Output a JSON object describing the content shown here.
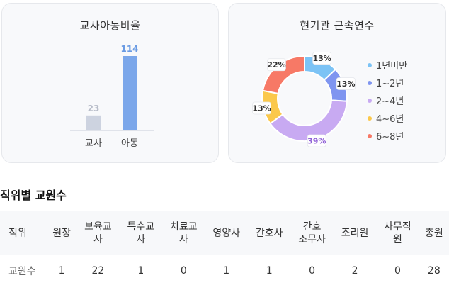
{
  "ratio_card": {
    "title": "교사아동비율"
  },
  "tenure_card": {
    "title": "현기관 근속연수"
  },
  "chart_data": [
    {
      "type": "bar",
      "title": "교사아동비율",
      "categories": [
        "교사",
        "아동"
      ],
      "values": [
        23,
        114
      ],
      "value_labels": [
        "23",
        "114"
      ],
      "colors": [
        "#cdd3e0",
        "#7ba7ea"
      ],
      "label_colors": [
        "#b8bdc9",
        "#6a9be3"
      ],
      "ylim": [
        0,
        114
      ]
    },
    {
      "type": "pie",
      "title": "현기관 근속연수",
      "categories": [
        "1년미만",
        "1~2년",
        "2~4년",
        "4~6년",
        "6~8년"
      ],
      "values": [
        13,
        13,
        39,
        13,
        22
      ],
      "value_labels": [
        "13%",
        "13%",
        "39%",
        "13%",
        "22%"
      ],
      "colors": [
        "#7cc3f5",
        "#7f95f0",
        "#c8aaf2",
        "#fbc84b",
        "#f77966"
      ],
      "label_colors": [
        "#333333",
        "#333333",
        "#8f5fd6",
        "#333333",
        "#333333"
      ],
      "legend_position": "right"
    }
  ],
  "staff_section": {
    "title": "직위별 교원수",
    "headers": [
      "직위",
      "원장",
      "보육교\n사",
      "특수교\n사",
      "치료교\n사",
      "영양사",
      "간호사",
      "간호\n조무사",
      "조리원",
      "사무직\n원",
      "총원"
    ],
    "row_label": "교원수",
    "values": [
      "1",
      "22",
      "1",
      "0",
      "1",
      "1",
      "0",
      "2",
      "0",
      "28"
    ]
  }
}
